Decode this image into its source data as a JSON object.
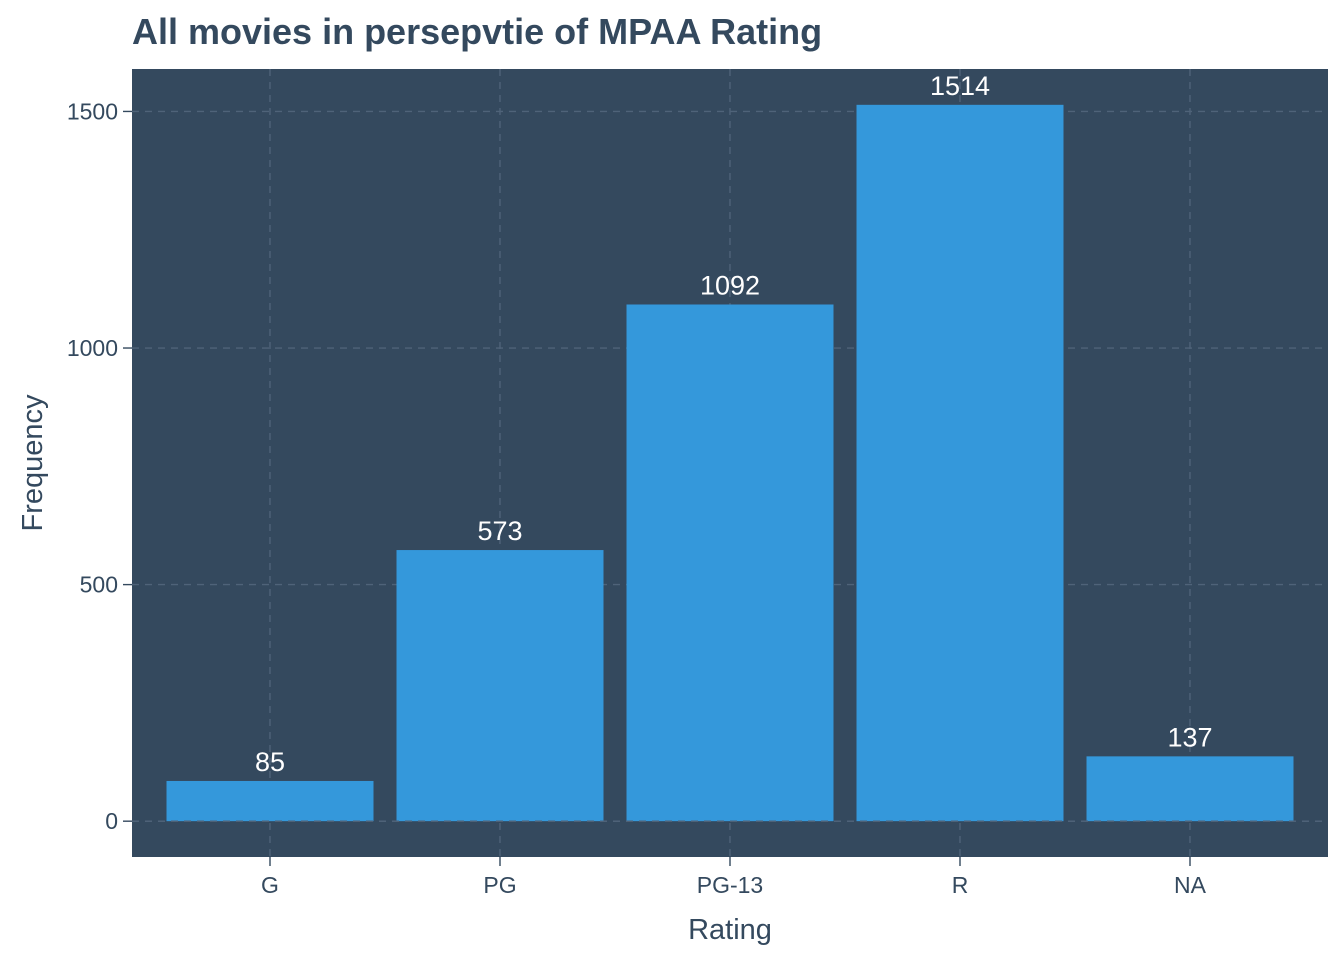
{
  "chart_data": {
    "type": "bar",
    "title": "All movies in persepvtie of MPAA Rating",
    "xlabel": "Rating",
    "ylabel": "Frequency",
    "categories": [
      "G",
      "PG",
      "PG-13",
      "R",
      "NA"
    ],
    "values": [
      85,
      573,
      1092,
      1514,
      137
    ],
    "data_labels": [
      "85",
      "573",
      "1092",
      "1514",
      "137"
    ],
    "yticks": [
      0,
      500,
      1000,
      1500
    ],
    "ytick_labels": [
      "0",
      "500",
      "1000",
      "1500"
    ],
    "ylim": [
      -75.7,
      1589.7
    ],
    "grid": true,
    "legend": "none",
    "colors": {
      "panel_background": "#34495e",
      "bar_fill": "#3498db",
      "grid": "#4f6379",
      "data_label": "#ffffff",
      "text": "#34495e"
    }
  }
}
